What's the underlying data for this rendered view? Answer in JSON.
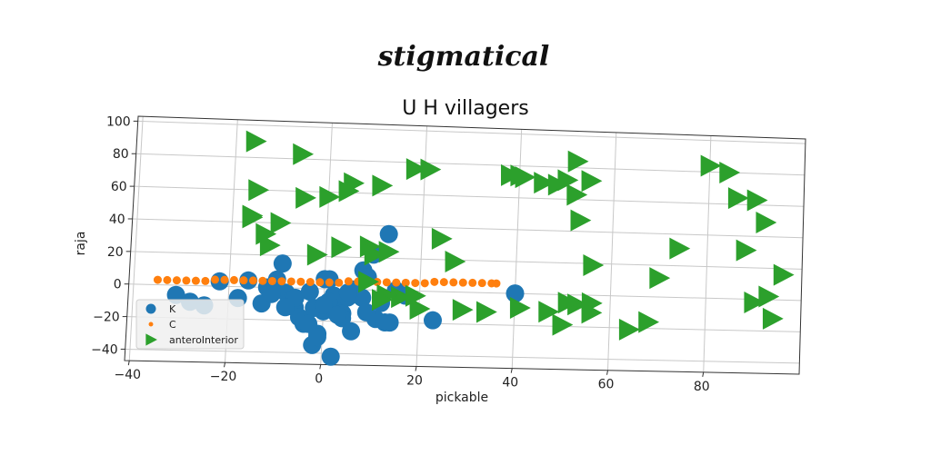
{
  "chart_data": {
    "type": "scatter",
    "suptitle": "stigmatical",
    "title": "U H villagers",
    "xlabel": "pickable",
    "ylabel": "raja",
    "xlim": [
      -41,
      100
    ],
    "ylim": [
      -47,
      103
    ],
    "xticks": [
      -40,
      -20,
      0,
      20,
      40,
      60,
      80
    ],
    "yticks": [
      -40,
      -20,
      0,
      20,
      40,
      60,
      80,
      100
    ],
    "grid": true,
    "legend_position": "lower-left",
    "series": [
      {
        "name": "K",
        "marker": "circle",
        "color": "#1f77b4",
        "x": [
          -31,
          -28,
          -25,
          -22,
          -18,
          -16,
          -13,
          -12,
          -10,
          -9,
          -8,
          -7,
          -6,
          -5,
          -4,
          -3,
          -2,
          -1,
          0,
          1,
          2,
          3,
          4,
          5,
          6,
          7,
          8,
          9,
          10,
          11,
          12,
          13,
          14,
          15,
          -6,
          -4,
          -2,
          0,
          2,
          4,
          6,
          8,
          -11,
          -8,
          -3,
          1,
          5,
          9,
          13,
          17,
          23,
          40,
          0,
          3,
          -1
        ],
        "y": [
          -6,
          -10,
          -12,
          3,
          -7,
          4,
          -10,
          0,
          5,
          15,
          -3,
          -8,
          -12,
          -18,
          -22,
          -2,
          -35,
          -28,
          -14,
          6,
          -42,
          -8,
          -15,
          -5,
          0,
          -3,
          12,
          8,
          22,
          -18,
          -8,
          35,
          -20,
          0,
          -6,
          -20,
          -12,
          6,
          -4,
          -18,
          -26,
          -5,
          -4,
          -12,
          -22,
          -8,
          -2,
          -14,
          -20,
          -3,
          -18,
          0,
          -10,
          -16,
          -30
        ]
      },
      {
        "name": "C",
        "marker": "circle-small",
        "color": "#ff7f0e",
        "x": [
          -35,
          -33,
          -31,
          -29,
          -27,
          -25,
          -23,
          -21,
          -19,
          -17,
          -15,
          -13,
          -11,
          -9,
          -7,
          -5,
          -3,
          -1,
          1,
          3,
          5,
          7,
          9,
          11,
          13,
          15,
          17,
          19,
          21,
          23,
          25,
          27,
          29,
          31,
          33,
          35,
          36
        ],
        "y": [
          3,
          3,
          3,
          3,
          3,
          3,
          4,
          4,
          4,
          4,
          4,
          4,
          4,
          4,
          4,
          4,
          4,
          4,
          4,
          4,
          5,
          5,
          5,
          5,
          5,
          5,
          5,
          5,
          5,
          6,
          6,
          6,
          6,
          6,
          6,
          6,
          6
        ]
      },
      {
        "name": "anteroInterior",
        "marker": "triangle-right",
        "color": "#2ca02c",
        "x": [
          -16,
          -16,
          -12,
          -15,
          -10,
          -16,
          -13,
          -6,
          -5,
          -2,
          0,
          3,
          5,
          4,
          9,
          10,
          11,
          13,
          9,
          16,
          18,
          21,
          24,
          27,
          38,
          40,
          41,
          45,
          48,
          50,
          52,
          55,
          53,
          56,
          52,
          53,
          56,
          50,
          56,
          64,
          68,
          70,
          74,
          80,
          84,
          86,
          88,
          90,
          92,
          94,
          93,
          51,
          96,
          90,
          34,
          41,
          47,
          29,
          20,
          19,
          13,
          12
        ],
        "y": [
          90,
          44,
          26,
          60,
          40,
          43,
          33,
          83,
          56,
          21,
          57,
          26,
          66,
          61,
          27,
          22,
          65,
          24,
          5,
          -4,
          76,
          76,
          33,
          19,
          74,
          74,
          73,
          70,
          69,
          72,
          84,
          72,
          47,
          19,
          63,
          -6,
          -5,
          -19,
          -11,
          -21,
          -16,
          12,
          31,
          84,
          80,
          64,
          31,
          63,
          49,
          -12,
          2,
          -5,
          16,
          -2,
          -12,
          -9,
          -11,
          -11,
          -11,
          -3,
          -3,
          -6
        ]
      }
    ]
  }
}
